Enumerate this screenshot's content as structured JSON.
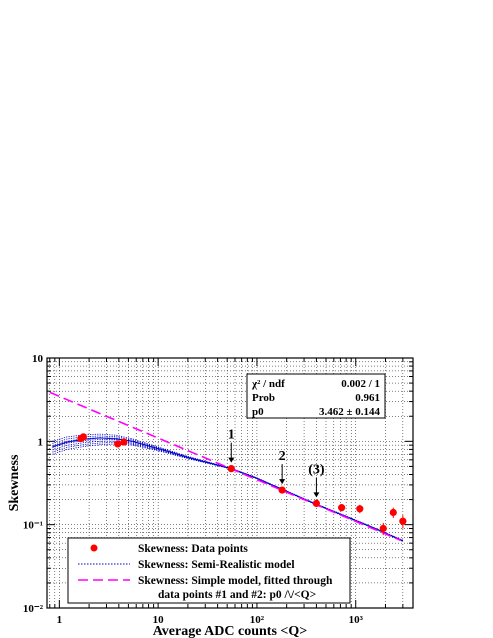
{
  "chart_data": {
    "type": "scatter",
    "x_scale": "log",
    "y_scale": "log",
    "xlim": [
      0.75,
      3800
    ],
    "ylim": [
      0.01,
      10
    ],
    "grid": true,
    "xlabel": "Average ADC counts  <Q>",
    "ylabel": "Skewness",
    "x_tick_labels": [
      "1",
      "10",
      "10²",
      "10³"
    ],
    "y_tick_labels": [
      "10⁻²",
      "10⁻¹",
      "1",
      "10"
    ],
    "series": [
      {
        "name": "Skewness: Data points",
        "kind": "points",
        "color": "#ff0000",
        "points": [
          {
            "x": 1.65,
            "y": 1.08,
            "err": 0.06
          },
          {
            "x": 1.75,
            "y": 1.13,
            "err": 0.06
          },
          {
            "x": 3.9,
            "y": 0.93,
            "err": 0.05
          },
          {
            "x": 4.5,
            "y": 0.98,
            "err": 0.05
          },
          {
            "x": 55,
            "y": 0.47,
            "err": 0.015
          },
          {
            "x": 180,
            "y": 0.26,
            "err": 0.012
          },
          {
            "x": 400,
            "y": 0.18,
            "err": 0.015
          },
          {
            "x": 720,
            "y": 0.16,
            "err": 0.015
          },
          {
            "x": 1100,
            "y": 0.155,
            "err": 0.018
          },
          {
            "x": 1900,
            "y": 0.09,
            "err": 0.015
          },
          {
            "x": 2400,
            "y": 0.14,
            "err": 0.02
          },
          {
            "x": 3000,
            "y": 0.11,
            "err": 0.02
          }
        ]
      },
      {
        "name": "Skewness: Semi-Realistic model",
        "kind": "band",
        "color": "#0000cc",
        "center": [
          [
            0.85,
            0.86
          ],
          [
            1.2,
            0.98
          ],
          [
            1.8,
            1.06
          ],
          [
            2.6,
            1.1
          ],
          [
            3.8,
            1.07
          ],
          [
            5.5,
            1.0
          ],
          [
            8,
            0.88
          ],
          [
            12,
            0.77
          ],
          [
            20,
            0.64
          ],
          [
            35,
            0.54
          ],
          [
            55,
            0.47
          ],
          [
            100,
            0.36
          ],
          [
            180,
            0.265
          ],
          [
            400,
            0.175
          ],
          [
            800,
            0.125
          ],
          [
            1500,
            0.092
          ],
          [
            3000,
            0.064
          ]
        ],
        "upper": [
          [
            0.85,
            1.0
          ],
          [
            1.2,
            1.13
          ],
          [
            1.8,
            1.2
          ],
          [
            2.6,
            1.22
          ],
          [
            3.8,
            1.18
          ],
          [
            5.5,
            1.07
          ],
          [
            8,
            0.93
          ],
          [
            12,
            0.8
          ],
          [
            20,
            0.66
          ],
          [
            35,
            0.55
          ],
          [
            55,
            0.475
          ],
          [
            100,
            0.365
          ],
          [
            180,
            0.268
          ],
          [
            400,
            0.177
          ],
          [
            800,
            0.127
          ],
          [
            1500,
            0.093
          ],
          [
            3000,
            0.065
          ]
        ],
        "lower": [
          [
            0.85,
            0.7
          ],
          [
            1.2,
            0.8
          ],
          [
            1.8,
            0.87
          ],
          [
            2.6,
            0.91
          ],
          [
            3.8,
            0.93
          ],
          [
            5.5,
            0.9
          ],
          [
            8,
            0.82
          ],
          [
            12,
            0.73
          ],
          [
            20,
            0.62
          ],
          [
            35,
            0.53
          ],
          [
            55,
            0.465
          ],
          [
            100,
            0.355
          ],
          [
            180,
            0.262
          ],
          [
            400,
            0.173
          ],
          [
            800,
            0.123
          ],
          [
            1500,
            0.091
          ],
          [
            3000,
            0.063
          ]
        ]
      },
      {
        "name": "Skewness: Simple model, fitted through",
        "name_line2": "data points #1 and #2: p0 /\\/<Q>",
        "kind": "dashed-line",
        "color": "#ff00ff",
        "formula": "p0 / sqrt(x)",
        "p0": 3.462
      }
    ],
    "stats_box": {
      "rows": [
        {
          "label": "χ² / ndf",
          "value": "0.002 / 1"
        },
        {
          "label": "Prob",
          "value": "0.961"
        },
        {
          "label": "p0",
          "value": "3.462  ± 0.144"
        }
      ]
    },
    "annotations": [
      {
        "label": "1",
        "x": 55,
        "y": 0.47
      },
      {
        "label": "2",
        "x": 180,
        "y": 0.26
      },
      {
        "label": "(3)",
        "x": 400,
        "y": 0.18
      }
    ]
  }
}
